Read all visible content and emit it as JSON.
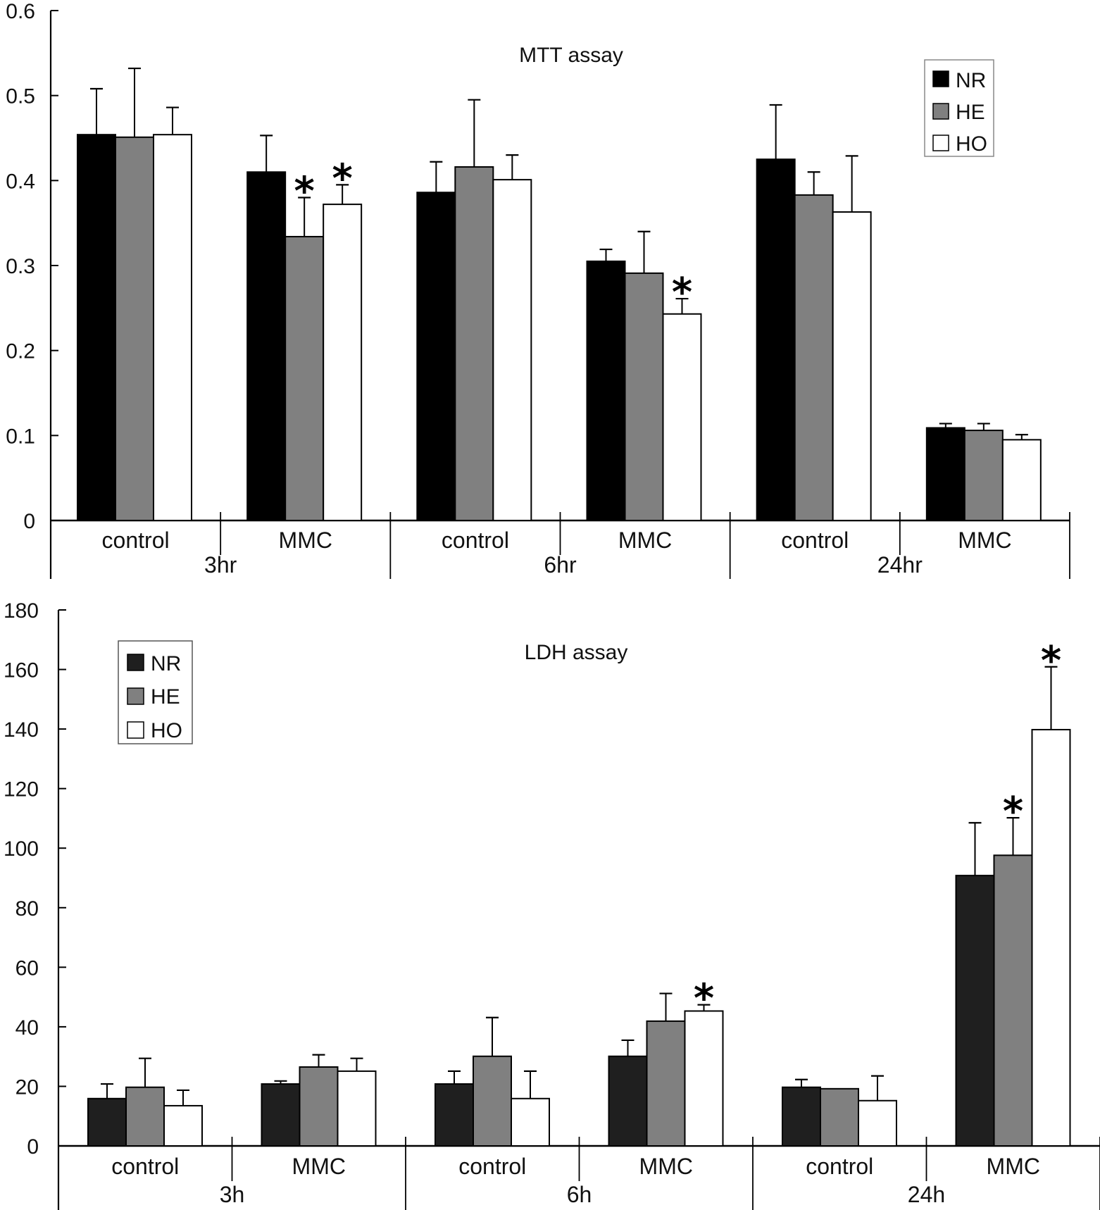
{
  "colors": {
    "NR_mtt": "#000000",
    "NR_ldh": "#1f1f1f",
    "HE": "#808080",
    "HO": "#ffffff",
    "stroke": "#000000",
    "legend_border": "#888888"
  },
  "chart_data": [
    {
      "id": "mtt",
      "type": "bar",
      "title": "MTT assay",
      "xlabel": "",
      "ylabel": "",
      "ylim": [
        0,
        0.6
      ],
      "yticks": [
        0,
        0.1,
        0.2,
        0.3,
        0.4,
        0.5,
        0.6
      ],
      "ytick_labels": [
        "0",
        "0.1",
        "0.2",
        "0.3",
        "0.4",
        "0.5",
        "0.6"
      ],
      "grid": false,
      "legend_position": "top-right",
      "time_groups": [
        "3hr",
        "6hr",
        "24hr"
      ],
      "categories": [
        "control",
        "MMC",
        "control",
        "MMC",
        "control",
        "MMC"
      ],
      "series": [
        {
          "name": "NR",
          "values": [
            0.454,
            0.41,
            0.386,
            0.305,
            0.425,
            0.109
          ],
          "error_upper": [
            0.508,
            0.453,
            0.422,
            0.319,
            0.489,
            0.114
          ]
        },
        {
          "name": "HE",
          "values": [
            0.451,
            0.334,
            0.416,
            0.291,
            0.383,
            0.106
          ],
          "error_upper": [
            0.532,
            0.38,
            0.495,
            0.34,
            0.41,
            0.114
          ]
        },
        {
          "name": "HO",
          "values": [
            0.454,
            0.372,
            0.401,
            0.243,
            0.363,
            0.095
          ],
          "error_upper": [
            0.486,
            0.395,
            0.43,
            0.261,
            0.429,
            0.101
          ]
        }
      ],
      "significance": [
        {
          "category_index": 1,
          "series": "HE",
          "mark": "*"
        },
        {
          "category_index": 1,
          "series": "HO",
          "mark": "*"
        },
        {
          "category_index": 3,
          "series": "HO",
          "mark": "*"
        }
      ]
    },
    {
      "id": "ldh",
      "type": "bar",
      "title": "LDH assay",
      "xlabel": "",
      "ylabel": "",
      "ylim": [
        0,
        180
      ],
      "yticks": [
        0,
        20,
        40,
        60,
        80,
        100,
        120,
        140,
        160,
        180
      ],
      "ytick_labels": [
        "0",
        "20",
        "40",
        "60",
        "80",
        "100",
        "120",
        "140",
        "160",
        "180"
      ],
      "grid": false,
      "legend_position": "top-left",
      "time_groups": [
        "3h",
        "6h",
        "24h"
      ],
      "categories": [
        "control",
        "MMC",
        "control",
        "MMC",
        "control",
        "MMC"
      ],
      "series": [
        {
          "name": "NR",
          "values": [
            15.9,
            20.8,
            20.8,
            30.1,
            19.7,
            90.8
          ],
          "error_upper": [
            20.8,
            21.8,
            25.1,
            35.5,
            22.3,
            108.5
          ]
        },
        {
          "name": "HE",
          "values": [
            19.7,
            26.5,
            30.1,
            41.9,
            19.2,
            97.6
          ],
          "error_upper": [
            29.4,
            30.6,
            43.1,
            51.2,
            19.2,
            110.2
          ]
        },
        {
          "name": "HO",
          "values": [
            13.5,
            25.1,
            15.9,
            45.3,
            15.2,
            139.8
          ],
          "error_upper": [
            18.7,
            29.4,
            25.1,
            47.4,
            23.5,
            160.9
          ]
        }
      ],
      "significance": [
        {
          "category_index": 3,
          "series": "HO",
          "mark": "*"
        },
        {
          "category_index": 5,
          "series": "HE",
          "mark": "*"
        },
        {
          "category_index": 5,
          "series": "HO",
          "mark": "*"
        }
      ]
    }
  ]
}
